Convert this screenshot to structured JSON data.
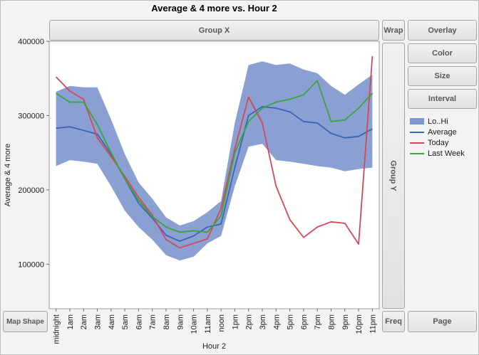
{
  "window": {
    "title": "Average & 4 more vs. Hour 2"
  },
  "drop_zones": {
    "group_x": "Group X",
    "wrap": "Wrap",
    "overlay": "Overlay",
    "color": "Color",
    "size": "Size",
    "interval": "Interval",
    "group_y": "Group Y",
    "map_shape": "Map Shape",
    "freq": "Freq",
    "page": "Page"
  },
  "legend": {
    "items": [
      {
        "label": "Lo..Hi",
        "type": "band",
        "color": "#7d96ce"
      },
      {
        "label": "Average",
        "type": "line",
        "color": "#3e64b4"
      },
      {
        "label": "Today",
        "type": "line",
        "color": "#d2485a"
      },
      {
        "label": "Last Week",
        "type": "line",
        "color": "#3aa43a"
      }
    ]
  },
  "chart_data": {
    "type": "line",
    "title": "Average & 4 more vs. Hour 2",
    "xlabel": "Hour 2",
    "ylabel": "Average & 4 more",
    "categories": [
      "midnight",
      "1am",
      "2am",
      "3am",
      "4am",
      "5am",
      "6am",
      "7am",
      "8am",
      "9am",
      "10am",
      "11am",
      "noon",
      "1pm",
      "2pm",
      "3pm",
      "4pm",
      "5pm",
      "6pm",
      "7pm",
      "8pm",
      "9pm",
      "10pm",
      "11pm"
    ],
    "y_ticks": [
      100000,
      200000,
      300000,
      400000
    ],
    "ylim": [
      40000,
      400000
    ],
    "grid": false,
    "legend_position": "right",
    "band": {
      "name": "Lo..Hi",
      "color": "#7d96ce",
      "lo": [
        232000,
        240000,
        238000,
        235000,
        205000,
        172000,
        150000,
        133000,
        112000,
        105000,
        110000,
        128000,
        138000,
        205000,
        258000,
        262000,
        240000,
        238000,
        235000,
        232000,
        230000,
        225000,
        228000,
        230000
      ],
      "hi": [
        332000,
        340000,
        338000,
        338000,
        295000,
        248000,
        210000,
        188000,
        163000,
        152000,
        158000,
        170000,
        185000,
        290000,
        368000,
        373000,
        368000,
        370000,
        362000,
        357000,
        340000,
        328000,
        342000,
        355000
      ]
    },
    "series": [
      {
        "name": "Average",
        "color": "#3e64b4",
        "values": [
          283000,
          285000,
          280000,
          275000,
          248000,
          215000,
          182000,
          162000,
          139000,
          131000,
          138000,
          150000,
          154000,
          230000,
          300000,
          312000,
          310000,
          305000,
          292000,
          290000,
          276000,
          270000,
          272000,
          282000
        ]
      },
      {
        "name": "Today",
        "color": "#d2485a",
        "values": [
          352000,
          333000,
          322000,
          270000,
          245000,
          218000,
          190000,
          166000,
          133000,
          122000,
          128000,
          134000,
          175000,
          255000,
          325000,
          290000,
          205000,
          160000,
          136000,
          150000,
          157000,
          155000,
          127000,
          380000
        ]
      },
      {
        "name": "Last Week",
        "color": "#3aa43a",
        "values": [
          330000,
          318000,
          318000,
          288000,
          250000,
          215000,
          186000,
          164000,
          150000,
          143000,
          145000,
          143000,
          165000,
          250000,
          292000,
          310000,
          318000,
          322000,
          328000,
          347000,
          292000,
          294000,
          310000,
          330000
        ]
      }
    ]
  }
}
